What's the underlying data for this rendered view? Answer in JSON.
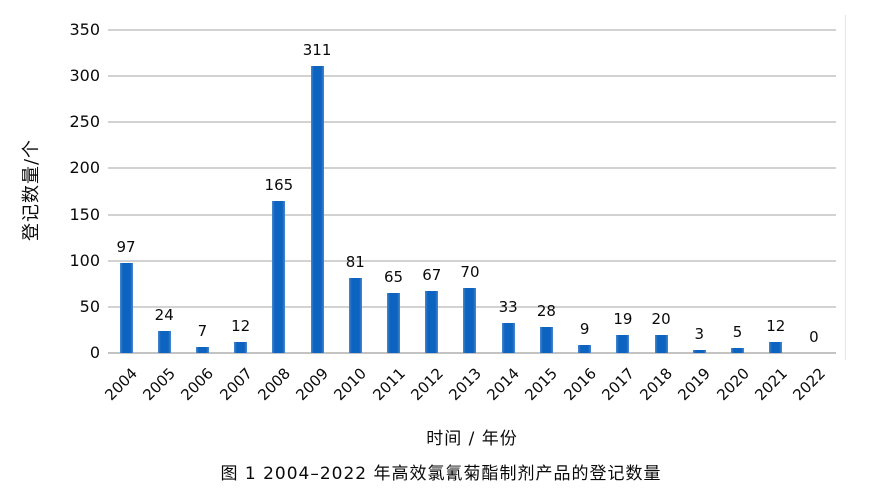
{
  "chart_data": {
    "type": "bar",
    "title": "",
    "categories": [
      "2004",
      "2005",
      "2006",
      "2007",
      "2008",
      "2009",
      "2010",
      "2011",
      "2012",
      "2013",
      "2014",
      "2015",
      "2016",
      "2017",
      "2018",
      "2019",
      "2020",
      "2021",
      "2022"
    ],
    "values": [
      97,
      24,
      7,
      12,
      165,
      311,
      81,
      65,
      67,
      70,
      33,
      28,
      9,
      19,
      20,
      3,
      5,
      12,
      0
    ],
    "xlabel": "时间 / 年份",
    "ylabel": "登记数量/个",
    "ylim": [
      0,
      350
    ],
    "yticks": [
      0,
      50,
      100,
      150,
      200,
      250,
      300,
      350
    ],
    "grid": true,
    "legend": "none",
    "bar_color": "#0d64c0",
    "gridline_color": "#d2d2d2",
    "label_color": "#0a0a0a"
  },
  "caption": "图 1 2004–2022 年高效氯氰菊酯制剂产品的登记数量"
}
